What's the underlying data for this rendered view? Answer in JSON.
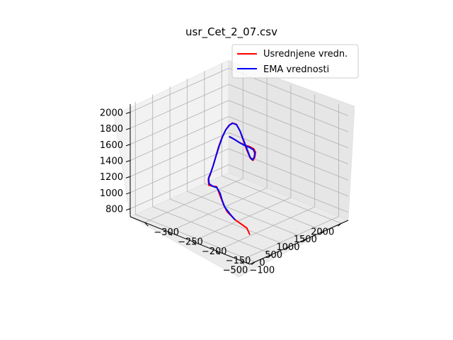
{
  "chart_data": {
    "type": "line",
    "projection": "3d",
    "title": "usr_Cet_2_07.csv",
    "xlabel": "",
    "ylabel": "",
    "zlabel": "",
    "x_axis": {
      "ticks": [
        -300,
        -250,
        -200,
        -150,
        -100
      ],
      "tick_labels": [
        "−300",
        "−250",
        "−200",
        "−150",
        "−100"
      ]
    },
    "y_axis": {
      "ticks": [
        -500,
        0,
        500,
        1000,
        1500,
        2000
      ],
      "tick_labels": [
        "−500",
        "0",
        "500",
        "1000",
        "1500",
        "2000"
      ]
    },
    "z_axis": {
      "ticks": [
        800,
        1000,
        1200,
        1400,
        1600,
        1800,
        2000
      ],
      "tick_labels": [
        "800",
        "1000",
        "1200",
        "1400",
        "1600",
        "1800",
        "2000"
      ]
    },
    "grid": true,
    "legend_position": "upper-right",
    "colors": {
      "red": "#ff0000",
      "blue": "#0000ff"
    },
    "series": [
      {
        "name": "Usrednjene vredn.",
        "color": "#ff0000",
        "points": [
          [
            -95,
            -450,
            1000
          ],
          [
            -115,
            -250,
            990
          ],
          [
            -150,
            -100,
            980
          ],
          [
            -180,
            80,
            975
          ],
          [
            -200,
            250,
            985
          ],
          [
            -215,
            350,
            1050
          ],
          [
            -225,
            400,
            1120
          ],
          [
            -235,
            420,
            1100
          ],
          [
            -245,
            450,
            1080
          ],
          [
            -250,
            500,
            1130
          ],
          [
            -250,
            560,
            1180
          ],
          [
            -250,
            620,
            1250
          ],
          [
            -250,
            700,
            1350
          ],
          [
            -250,
            800,
            1480
          ],
          [
            -250,
            900,
            1580
          ],
          [
            -250,
            1000,
            1650
          ],
          [
            -250,
            1100,
            1690
          ],
          [
            -250,
            1200,
            1700
          ],
          [
            -250,
            1320,
            1660
          ],
          [
            -250,
            1420,
            1560
          ],
          [
            -250,
            1520,
            1420
          ],
          [
            -250,
            1620,
            1280
          ],
          [
            -250,
            1720,
            1160
          ],
          [
            -250,
            1800,
            1120
          ],
          [
            -250,
            1850,
            1150
          ],
          [
            -250,
            1870,
            1210
          ],
          [
            -250,
            1820,
            1260
          ],
          [
            -250,
            1700,
            1310
          ],
          [
            -250,
            1550,
            1360
          ],
          [
            -250,
            1400,
            1420
          ],
          [
            -250,
            1250,
            1490
          ],
          [
            -250,
            1120,
            1540
          ]
        ]
      },
      {
        "name": "EMA vrednosti",
        "color": "#0000ff",
        "points": [
          [
            -150,
            -120,
            990
          ],
          [
            -170,
            20,
            985
          ],
          [
            -190,
            150,
            995
          ],
          [
            -205,
            280,
            1020
          ],
          [
            -215,
            360,
            1070
          ],
          [
            -225,
            400,
            1110
          ],
          [
            -235,
            420,
            1100
          ],
          [
            -245,
            455,
            1100
          ],
          [
            -250,
            510,
            1150
          ],
          [
            -250,
            570,
            1200
          ],
          [
            -250,
            640,
            1270
          ],
          [
            -250,
            720,
            1370
          ],
          [
            -250,
            820,
            1490
          ],
          [
            -250,
            920,
            1590
          ],
          [
            -250,
            1020,
            1655
          ],
          [
            -250,
            1120,
            1690
          ],
          [
            -250,
            1210,
            1695
          ],
          [
            -250,
            1320,
            1655
          ],
          [
            -250,
            1420,
            1560
          ],
          [
            -250,
            1520,
            1430
          ],
          [
            -250,
            1620,
            1300
          ],
          [
            -250,
            1710,
            1180
          ],
          [
            -250,
            1780,
            1130
          ],
          [
            -250,
            1830,
            1150
          ],
          [
            -250,
            1850,
            1200
          ],
          [
            -250,
            1810,
            1250
          ],
          [
            -250,
            1700,
            1300
          ],
          [
            -250,
            1560,
            1350
          ],
          [
            -250,
            1420,
            1410
          ],
          [
            -250,
            1290,
            1470
          ],
          [
            -250,
            1180,
            1520
          ],
          [
            -250,
            1120,
            1545
          ]
        ]
      }
    ]
  }
}
